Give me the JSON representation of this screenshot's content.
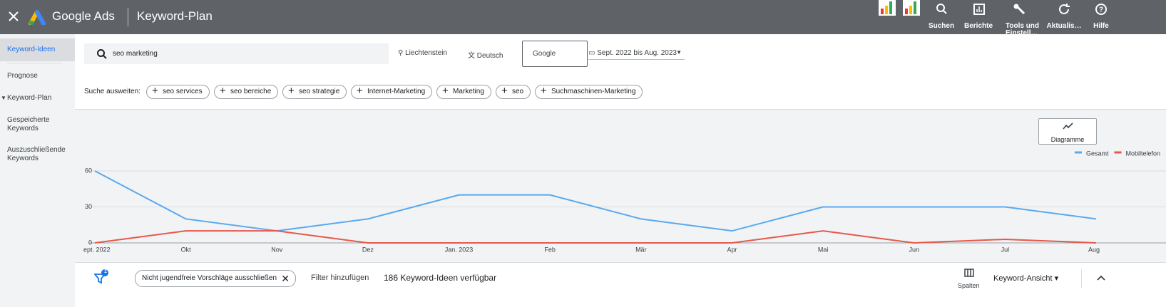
{
  "header": {
    "product": "Google Ads",
    "page_title": "Keyword-Plan",
    "nav": [
      "Suchen",
      "Berichte",
      "Tools und Einstell…",
      "Aktualis…",
      "Hilfe"
    ]
  },
  "sidebar": {
    "items": [
      "Keyword-Ideen",
      "Prognose",
      "Keyword-Plan",
      "Gespeicherte Keywords",
      "Auszuschließende Keywords"
    ]
  },
  "search": {
    "query": "seo marketing",
    "location": "Liechtenstein",
    "language": "Deutsch",
    "network": "Google",
    "date_range": "Sept. 2022 bis Aug. 2023"
  },
  "expand": {
    "label": "Suche ausweiten:",
    "chips": [
      "seo services",
      "seo bereiche",
      "seo strategie",
      "Internet-Marketing",
      "Marketing",
      "seo",
      "Suchmaschinen-Marketing"
    ]
  },
  "chart_button": "Diagramme",
  "chart_data": {
    "type": "line",
    "categories": [
      "ept. 2022",
      "Okt",
      "Nov",
      "Dez",
      "Jan. 2023",
      "Feb",
      "Mär",
      "Apr",
      "Mai",
      "Jun",
      "Jul",
      "Aug"
    ],
    "series": [
      {
        "name": "Gesamt",
        "color": "#5aa9ef",
        "values": [
          60,
          20,
          10,
          20,
          40,
          40,
          20,
          10,
          30,
          30,
          30,
          20
        ]
      },
      {
        "name": "Mobiltelefon",
        "color": "#e8574a",
        "values": [
          0,
          10,
          10,
          0,
          0,
          0,
          0,
          0,
          10,
          0,
          3,
          0
        ]
      }
    ],
    "ylim": [
      0,
      60
    ],
    "yticks": [
      0,
      30,
      60
    ],
    "grid": true,
    "legend": "top-right"
  },
  "bottom": {
    "filter_badge": "1",
    "filter_chip": "Nicht jugendfreie Vorschläge ausschließen",
    "add_filter": "Filter hinzufügen",
    "count": "186 Keyword-Ideen verfügbar",
    "columns": "Spalten",
    "view": "Keyword-Ansicht"
  }
}
